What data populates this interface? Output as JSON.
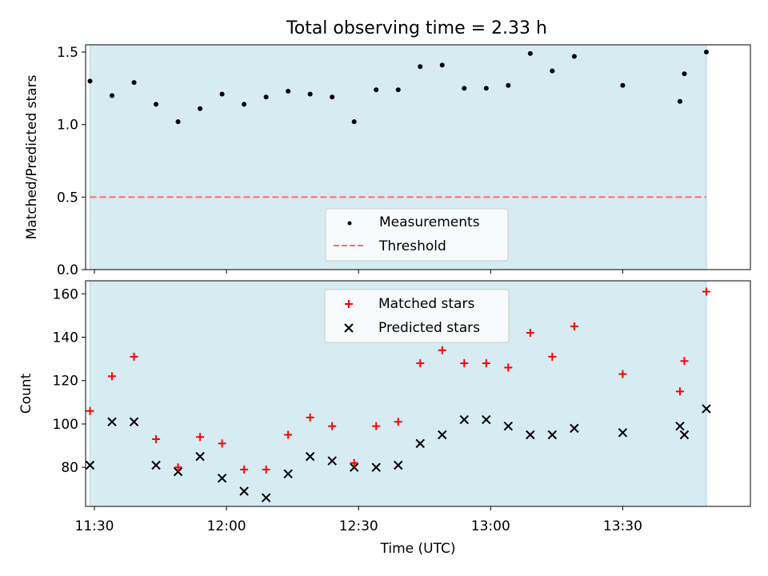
{
  "chart_data": {
    "title": "Total observing time = 2.33 h",
    "xlabel": "Time (UTC)",
    "x_tick_labels": [
      "11:30",
      "12:00",
      "12:30",
      "13:00",
      "13:30"
    ],
    "x_range": [
      "11:28",
      "13:59"
    ],
    "shaded_interval": [
      "11:29",
      "13:49"
    ],
    "colors": {
      "shade": "#add8e6",
      "measurements": "#000000",
      "threshold": "#ff6b6b",
      "matched": "#ff0000",
      "predicted": "#000000"
    },
    "panels": [
      {
        "type": "scatter",
        "ylabel": "Matched/Predicted stars",
        "ylim": [
          0,
          1.55
        ],
        "y_ticks": [
          "0.0",
          "0.5",
          "1.0",
          "1.5"
        ],
        "grid": false,
        "legend_position": "lower-center",
        "series": [
          {
            "name": "Measurements",
            "marker": "dot",
            "times": [
              "11:29",
              "11:34",
              "11:39",
              "11:44",
              "11:49",
              "11:54",
              "11:59",
              "12:04",
              "12:09",
              "12:14",
              "12:19",
              "12:24",
              "12:29",
              "12:34",
              "12:39",
              "12:44",
              "12:49",
              "12:54",
              "12:59",
              "13:04",
              "13:09",
              "13:14",
              "13:19",
              "13:30",
              "13:43",
              "13:44",
              "13:49"
            ],
            "values": [
              1.3,
              1.2,
              1.29,
              1.14,
              1.02,
              1.11,
              1.21,
              1.14,
              1.19,
              1.23,
              1.21,
              1.19,
              1.02,
              1.24,
              1.24,
              1.4,
              1.41,
              1.25,
              1.25,
              1.27,
              1.49,
              1.37,
              1.47,
              1.27,
              1.16,
              1.35,
              1.5
            ]
          }
        ],
        "threshold": {
          "name": "Threshold",
          "value": 0.5,
          "style": "dashed"
        }
      },
      {
        "type": "scatter",
        "ylabel": "Count",
        "ylim": [
          62,
          166
        ],
        "y_ticks": [
          "80",
          "100",
          "120",
          "140",
          "160"
        ],
        "grid": false,
        "legend_position": "upper-center",
        "series": [
          {
            "name": "Matched stars",
            "marker": "plus",
            "times": [
              "11:29",
              "11:34",
              "11:39",
              "11:44",
              "11:49",
              "11:54",
              "11:59",
              "12:04",
              "12:09",
              "12:14",
              "12:19",
              "12:24",
              "12:29",
              "12:34",
              "12:39",
              "12:44",
              "12:49",
              "12:54",
              "12:59",
              "13:04",
              "13:09",
              "13:14",
              "13:19",
              "13:30",
              "13:43",
              "13:44",
              "13:49"
            ],
            "values": [
              106,
              122,
              131,
              93,
              80,
              94,
              91,
              79,
              79,
              95,
              103,
              99,
              82,
              99,
              101,
              128,
              134,
              128,
              128,
              126,
              142,
              131,
              145,
              123,
              115,
              129,
              161
            ]
          },
          {
            "name": "Predicted stars",
            "marker": "x",
            "times": [
              "11:29",
              "11:34",
              "11:39",
              "11:44",
              "11:49",
              "11:54",
              "11:59",
              "12:04",
              "12:09",
              "12:14",
              "12:19",
              "12:24",
              "12:29",
              "12:34",
              "12:39",
              "12:44",
              "12:49",
              "12:54",
              "12:59",
              "13:04",
              "13:09",
              "13:14",
              "13:19",
              "13:30",
              "13:43",
              "13:44",
              "13:49"
            ],
            "values": [
              81,
              101,
              101,
              81,
              78,
              85,
              75,
              69,
              66,
              77,
              85,
              83,
              80,
              80,
              81,
              91,
              95,
              102,
              102,
              99,
              95,
              95,
              98,
              96,
              99,
              95,
              107
            ]
          }
        ]
      }
    ]
  }
}
